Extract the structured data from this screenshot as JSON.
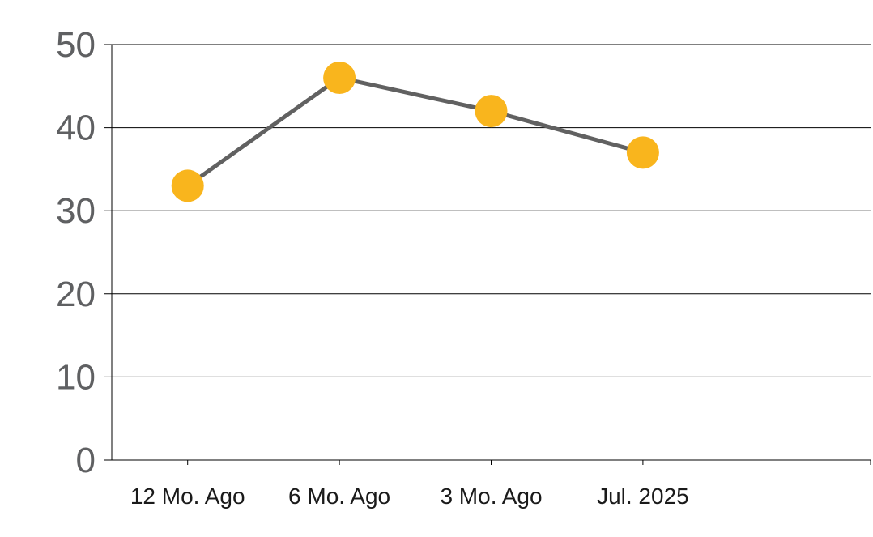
{
  "chart_data": {
    "type": "line",
    "categories": [
      "12 Mo. Ago",
      "6 Mo. Ago",
      "3 Mo. Ago",
      "Jul. 2025"
    ],
    "series": [
      {
        "values": [
          33,
          46,
          42,
          37
        ]
      }
    ],
    "ylim": [
      0,
      50
    ],
    "yticks": [
      0,
      10,
      20,
      30,
      40,
      50
    ],
    "grid": true,
    "legend": "none",
    "colors": {
      "line": "#616161",
      "marker": "#f9b51d",
      "grid": "#000000",
      "axis": "#000000",
      "y_tick_text": "#5f6062",
      "x_tick_text": "#1a1a1a"
    }
  }
}
